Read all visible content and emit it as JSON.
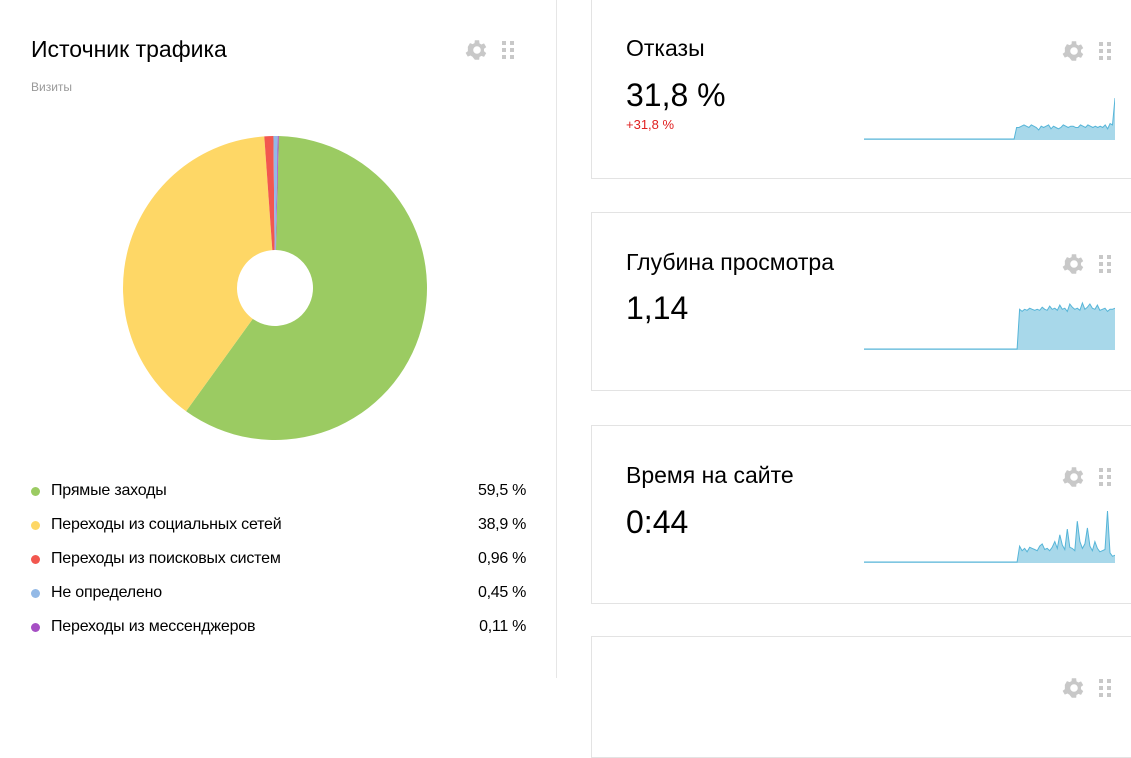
{
  "traffic_widget": {
    "title": "Источник трафика",
    "subtitle": "Визиты",
    "icons": [
      "gear-icon",
      "drag-handle-icon"
    ],
    "chart_data": {
      "type": "pie",
      "donut": true,
      "categories": [
        "Прямые заходы",
        "Переходы из социальных сетей",
        "Переходы из поисковых систем",
        "Не определено",
        "Переходы из мессенджеров"
      ],
      "values": [
        59.5,
        38.9,
        0.96,
        0.45,
        0.11
      ],
      "colors": [
        "#9bcb62",
        "#fed766",
        "#f2574f",
        "#93b9e6",
        "#a64fc4"
      ]
    },
    "legend": [
      {
        "label": "Прямые заходы",
        "value": "59,5 %",
        "color": "#9bcb62"
      },
      {
        "label": "Переходы из социальных сетей",
        "value": "38,9 %",
        "color": "#fed766"
      },
      {
        "label": "Переходы из поисковых систем",
        "value": "0,96 %",
        "color": "#f2574f"
      },
      {
        "label": "Не определено",
        "value": "0,45 %",
        "color": "#93b9e6"
      },
      {
        "label": "Переходы из мессенджеров",
        "value": "0,11 %",
        "color": "#a64fc4"
      }
    ]
  },
  "metric_cards": [
    {
      "title": "Отказы",
      "value": "31,8 %",
      "delta": "+31,8 %",
      "sparkline": [
        0,
        0,
        0,
        0,
        0,
        0,
        0,
        0,
        0,
        0,
        0,
        0,
        0,
        0,
        0,
        0,
        0,
        0,
        0,
        0,
        0,
        0,
        0,
        0,
        0,
        0,
        0,
        0,
        0,
        0,
        0,
        0,
        0,
        0,
        0,
        0,
        0,
        0,
        0,
        0,
        0,
        0,
        0,
        0,
        0,
        0,
        0,
        0,
        0,
        0,
        0,
        0,
        0,
        0,
        0,
        0,
        0,
        0,
        0,
        0,
        0,
        0,
        9,
        9,
        10,
        11,
        10,
        9,
        11,
        10,
        9,
        7,
        10,
        9,
        10,
        11,
        8,
        10,
        9,
        8,
        9,
        11,
        10,
        9,
        10,
        10,
        9,
        9,
        11,
        10,
        9,
        11,
        10,
        9,
        10,
        9,
        10,
        9,
        11,
        8,
        12,
        11,
        32
      ]
    },
    {
      "title": "Глубина просмотра",
      "value": "1,14",
      "delta": "",
      "sparkline": [
        0,
        0,
        0,
        0,
        0,
        0,
        0,
        0,
        0,
        0,
        0,
        0,
        0,
        0,
        0,
        0,
        0,
        0,
        0,
        0,
        0,
        0,
        0,
        0,
        0,
        0,
        0,
        0,
        0,
        0,
        0,
        0,
        0,
        0,
        0,
        0,
        0,
        0,
        0,
        0,
        0,
        0,
        0,
        0,
        0,
        0,
        0,
        0,
        0,
        0,
        0,
        0,
        0,
        0,
        0,
        0,
        0,
        0,
        0,
        0,
        0,
        0,
        38,
        36,
        38,
        37,
        39,
        38,
        37,
        38,
        37,
        40,
        38,
        37,
        41,
        38,
        39,
        37,
        42,
        38,
        39,
        36,
        43,
        40,
        38,
        39,
        37,
        44,
        38,
        40,
        43,
        39,
        38,
        42,
        37,
        38,
        39,
        36,
        38,
        38,
        39
      ]
    },
    {
      "title": "Время на сайте",
      "value": "0:44",
      "delta": "",
      "sparkline": [
        0,
        0,
        0,
        0,
        0,
        0,
        0,
        0,
        0,
        0,
        0,
        0,
        0,
        0,
        0,
        0,
        0,
        0,
        0,
        0,
        0,
        0,
        0,
        0,
        0,
        0,
        0,
        0,
        0,
        0,
        0,
        0,
        0,
        0,
        0,
        0,
        0,
        0,
        0,
        0,
        0,
        0,
        0,
        0,
        0,
        0,
        0,
        0,
        0,
        0,
        0,
        0,
        0,
        0,
        0,
        0,
        0,
        0,
        0,
        0,
        0,
        0,
        14,
        10,
        12,
        9,
        13,
        12,
        11,
        10,
        14,
        16,
        11,
        12,
        10,
        13,
        18,
        12,
        24,
        15,
        11,
        29,
        13,
        12,
        10,
        36,
        18,
        12,
        16,
        30,
        14,
        10,
        18,
        12,
        9,
        10,
        11,
        45,
        8,
        5,
        6
      ]
    },
    {
      "title": "",
      "value": "",
      "delta": "",
      "sparkline": []
    }
  ]
}
